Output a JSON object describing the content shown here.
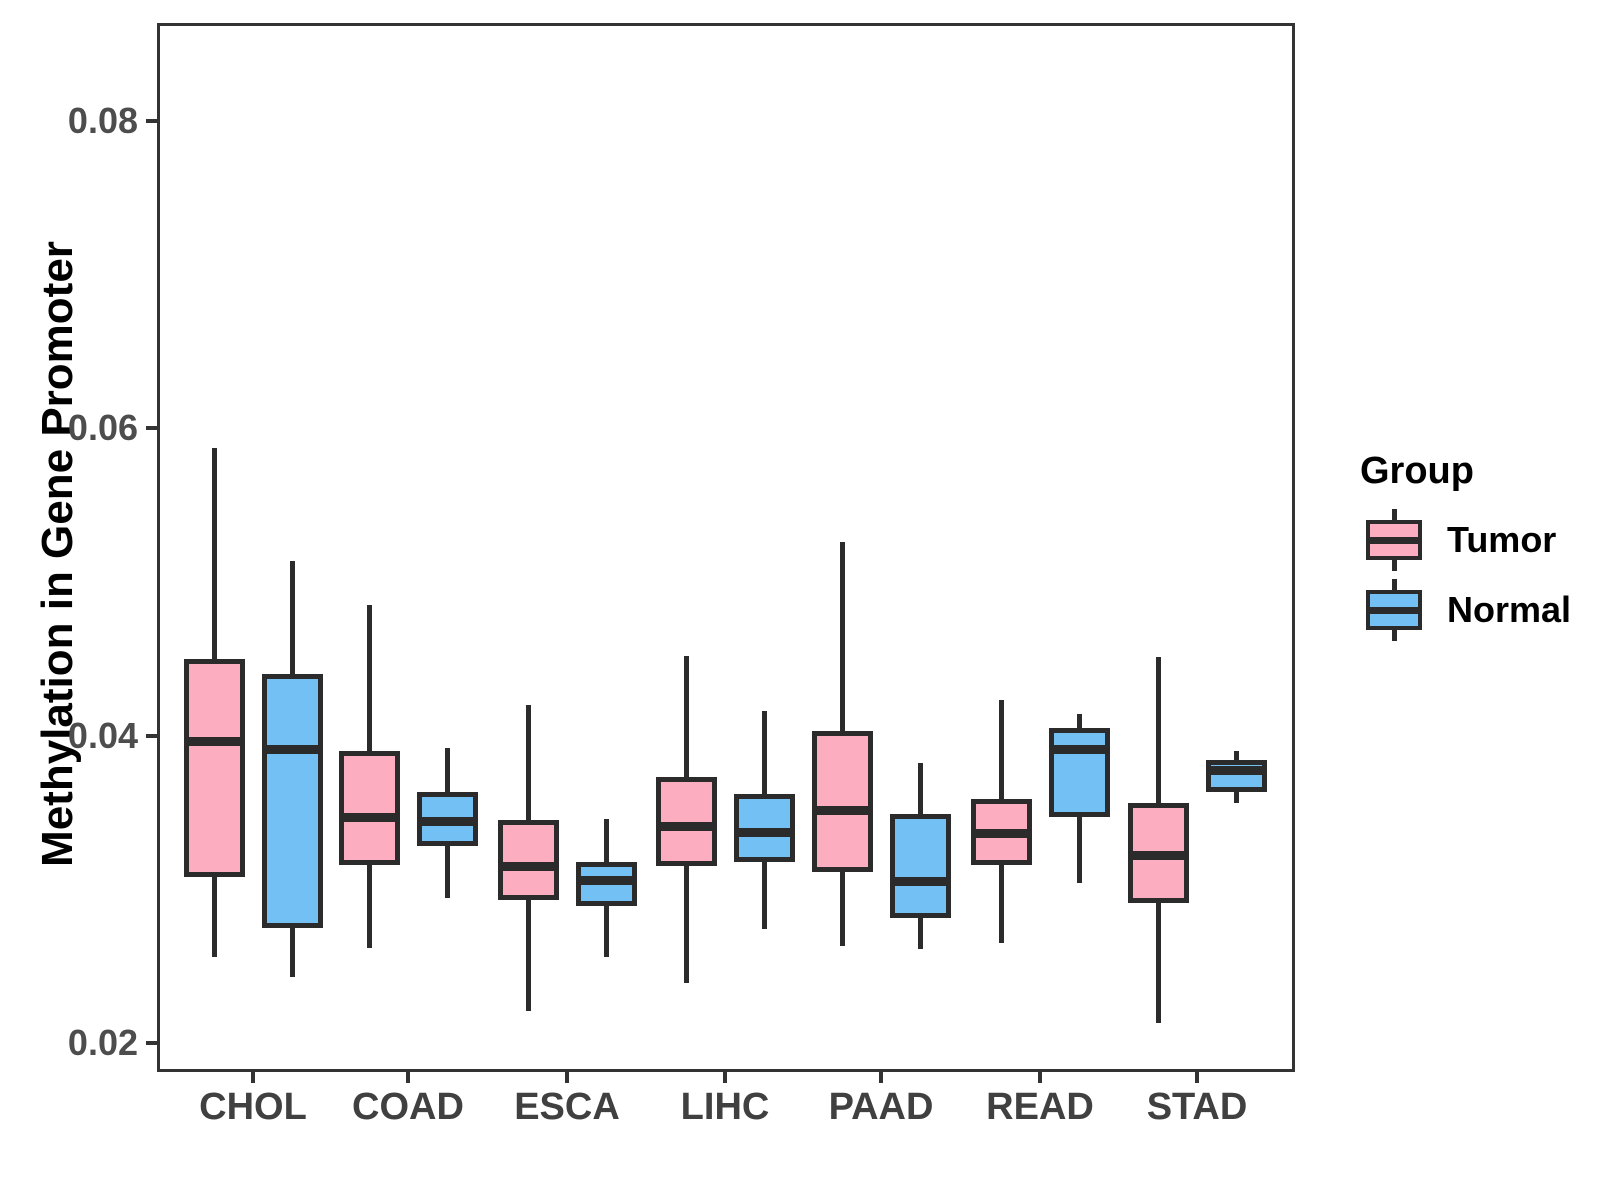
{
  "figure": {
    "background": "#FFFFFF"
  },
  "y_axis": {
    "title": "Methylation in Gene Promoter",
    "tick_labels": [
      "0.02",
      "0.04",
      "0.06",
      "0.08"
    ]
  },
  "x_axis": {
    "categories": [
      "CHOL",
      "COAD",
      "ESCA",
      "LIHC",
      "PAAD",
      "READ",
      "STAD"
    ]
  },
  "legend": {
    "title": "Group",
    "items": [
      {
        "label": "Tumor",
        "color": "#FCAEC0"
      },
      {
        "label": "Normal",
        "color": "#73C0F5"
      }
    ]
  },
  "style": {
    "panel_border_color": "#333333",
    "box_stroke_color": "#2B2B2B",
    "tick_label_color": "#4D4D4D",
    "category_label_color": "#404040"
  },
  "chart_data": {
    "type": "boxplot",
    "title": "",
    "xlabel": "",
    "ylabel": "Methylation in Gene Promoter",
    "ylim": [
      0.0181,
      0.0864
    ],
    "yticks": [
      0.02,
      0.04,
      0.06,
      0.08
    ],
    "grid": false,
    "legend_position": "right",
    "categories": [
      "CHOL",
      "COAD",
      "ESCA",
      "LIHC",
      "PAAD",
      "READ",
      "STAD"
    ],
    "series": [
      {
        "name": "Tumor",
        "fill": "#FCAEC0",
        "boxes": [
          {
            "category": "CHOL",
            "low": 0.0256,
            "q1": 0.0308,
            "median": 0.0396,
            "q3": 0.045,
            "high": 0.0587
          },
          {
            "category": "COAD",
            "low": 0.0262,
            "q1": 0.0316,
            "median": 0.0347,
            "q3": 0.039,
            "high": 0.0485
          },
          {
            "category": "ESCA",
            "low": 0.0221,
            "q1": 0.0293,
            "median": 0.0315,
            "q3": 0.0345,
            "high": 0.042
          },
          {
            "category": "LIHC",
            "low": 0.0239,
            "q1": 0.0315,
            "median": 0.0341,
            "q3": 0.0373,
            "high": 0.0452
          },
          {
            "category": "PAAD",
            "low": 0.0263,
            "q1": 0.0311,
            "median": 0.0351,
            "q3": 0.0403,
            "high": 0.0526
          },
          {
            "category": "READ",
            "low": 0.0265,
            "q1": 0.0316,
            "median": 0.0336,
            "q3": 0.0359,
            "high": 0.0423
          },
          {
            "category": "STAD",
            "low": 0.0213,
            "q1": 0.0291,
            "median": 0.0322,
            "q3": 0.0356,
            "high": 0.0451
          }
        ]
      },
      {
        "name": "Normal",
        "fill": "#73C0F5",
        "boxes": [
          {
            "category": "CHOL",
            "low": 0.0243,
            "q1": 0.0275,
            "median": 0.0391,
            "q3": 0.044,
            "high": 0.0514
          },
          {
            "category": "COAD",
            "low": 0.0294,
            "q1": 0.0328,
            "median": 0.0344,
            "q3": 0.0363,
            "high": 0.0392
          },
          {
            "category": "ESCA",
            "low": 0.0256,
            "q1": 0.0289,
            "median": 0.0306,
            "q3": 0.0318,
            "high": 0.0346
          },
          {
            "category": "LIHC",
            "low": 0.0274,
            "q1": 0.0318,
            "median": 0.0337,
            "q3": 0.0362,
            "high": 0.0416
          },
          {
            "category": "PAAD",
            "low": 0.0261,
            "q1": 0.0281,
            "median": 0.0305,
            "q3": 0.0349,
            "high": 0.0382
          },
          {
            "category": "READ",
            "low": 0.0304,
            "q1": 0.0347,
            "median": 0.0391,
            "q3": 0.0405,
            "high": 0.0414
          },
          {
            "category": "STAD",
            "low": 0.0356,
            "q1": 0.0363,
            "median": 0.0377,
            "q3": 0.0384,
            "high": 0.039
          }
        ]
      }
    ]
  }
}
